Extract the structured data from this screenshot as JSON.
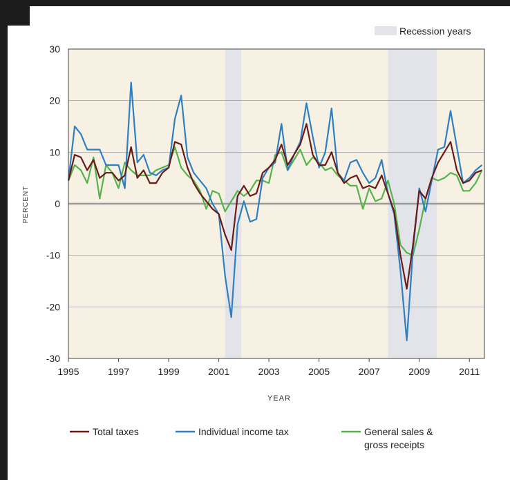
{
  "chart_data": {
    "type": "line",
    "xlabel": "YEAR",
    "ylabel": "PERCENT",
    "xlim": [
      1995,
      2011.6
    ],
    "ylim": [
      -30,
      30
    ],
    "x_ticks": [
      1995,
      1997,
      1999,
      2001,
      2003,
      2005,
      2007,
      2009,
      2011
    ],
    "y_ticks": [
      30,
      20,
      10,
      0,
      -10,
      -20,
      -30
    ],
    "grid": "horizontal",
    "plot_background": "#f6f1e3",
    "recession_label": "Recession years",
    "recession_color": "#e2e4e9",
    "recessions": [
      [
        2001.25,
        2001.9
      ],
      [
        2007.75,
        2009.7
      ]
    ],
    "x": [
      1995.0,
      1995.25,
      1995.5,
      1995.75,
      1996.0,
      1996.25,
      1996.5,
      1996.75,
      1997.0,
      1997.25,
      1997.5,
      1997.75,
      1998.0,
      1998.25,
      1998.5,
      1998.75,
      1999.0,
      1999.25,
      1999.5,
      1999.75,
      2000.0,
      2000.25,
      2000.5,
      2000.75,
      2001.0,
      2001.25,
      2001.5,
      2001.75,
      2002.0,
      2002.25,
      2002.5,
      2002.75,
      2003.0,
      2003.25,
      2003.5,
      2003.75,
      2004.0,
      2004.25,
      2004.5,
      2004.75,
      2005.0,
      2005.25,
      2005.5,
      2005.75,
      2006.0,
      2006.25,
      2006.5,
      2006.75,
      2007.0,
      2007.25,
      2007.5,
      2007.75,
      2008.0,
      2008.25,
      2008.5,
      2008.75,
      2009.0,
      2009.25,
      2009.5,
      2009.75,
      2010.0,
      2010.25,
      2010.5,
      2010.75,
      2011.0,
      2011.25,
      2011.5
    ],
    "series": [
      {
        "name": "Total taxes",
        "color": "#6b1a1a",
        "values": [
          4.5,
          9.5,
          9.0,
          6.5,
          8.5,
          5.0,
          6.0,
          6.0,
          4.5,
          5.5,
          11.0,
          5.0,
          6.5,
          4.0,
          4.0,
          6.0,
          7.0,
          12.0,
          11.5,
          7.0,
          4.0,
          2.0,
          0.5,
          -1.0,
          -2.0,
          -6.0,
          -9.0,
          1.5,
          3.5,
          1.5,
          2.0,
          6.0,
          7.0,
          8.5,
          11.5,
          7.5,
          9.5,
          11.5,
          15.5,
          9.5,
          7.5,
          7.5,
          10.0,
          6.0,
          4.0,
          5.0,
          5.5,
          3.0,
          3.5,
          3.0,
          5.5,
          2.0,
          -1.5,
          -10.0,
          -16.5,
          -8.0,
          2.5,
          1.0,
          5.0,
          8.0,
          10.0,
          12.0,
          6.5,
          4.0,
          4.5,
          6.0,
          6.5
        ]
      },
      {
        "name": "Individual income tax",
        "color": "#2f7fc1",
        "values": [
          4.5,
          15.0,
          13.5,
          10.5,
          10.5,
          10.5,
          7.5,
          7.5,
          7.5,
          3.0,
          23.5,
          8.0,
          9.5,
          6.0,
          5.5,
          6.5,
          7.0,
          16.5,
          21.0,
          9.0,
          6.0,
          4.5,
          3.0,
          0.0,
          -2.0,
          -14.0,
          -22.0,
          -4.0,
          0.5,
          -3.5,
          -3.0,
          5.0,
          7.0,
          8.0,
          15.5,
          6.5,
          9.5,
          12.0,
          19.5,
          13.0,
          7.0,
          10.0,
          18.5,
          6.0,
          4.5,
          8.0,
          8.5,
          6.0,
          4.0,
          5.0,
          8.5,
          2.0,
          -2.0,
          -13.0,
          -26.5,
          -9.0,
          3.0,
          -1.5,
          4.5,
          10.5,
          11.0,
          18.0,
          11.0,
          4.0,
          5.0,
          6.5,
          7.5
        ]
      },
      {
        "name": "General sales & gross receipts",
        "color": "#58b24a",
        "values": [
          4.5,
          7.5,
          6.5,
          4.0,
          9.0,
          1.0,
          7.5,
          6.0,
          3.0,
          8.0,
          6.5,
          5.5,
          5.5,
          5.5,
          6.5,
          7.0,
          7.5,
          11.0,
          7.0,
          5.5,
          4.5,
          2.5,
          -1.0,
          2.5,
          2.0,
          -1.5,
          0.5,
          2.5,
          1.5,
          2.5,
          4.5,
          4.5,
          4.0,
          9.5,
          10.0,
          6.5,
          8.5,
          10.5,
          7.5,
          9.0,
          8.0,
          6.5,
          7.0,
          5.5,
          4.5,
          3.5,
          3.5,
          -1.0,
          3.0,
          0.5,
          1.0,
          4.5,
          0.0,
          -8.0,
          -9.5,
          -10.0,
          -5.0,
          1.0,
          5.0,
          4.5,
          5.0,
          6.0,
          5.5,
          2.5,
          2.5,
          4.0,
          6.5
        ]
      }
    ],
    "legend_position": "bottom",
    "legend": [
      "Total taxes",
      "Individual income tax",
      "General sales &",
      "gross receipts"
    ]
  }
}
